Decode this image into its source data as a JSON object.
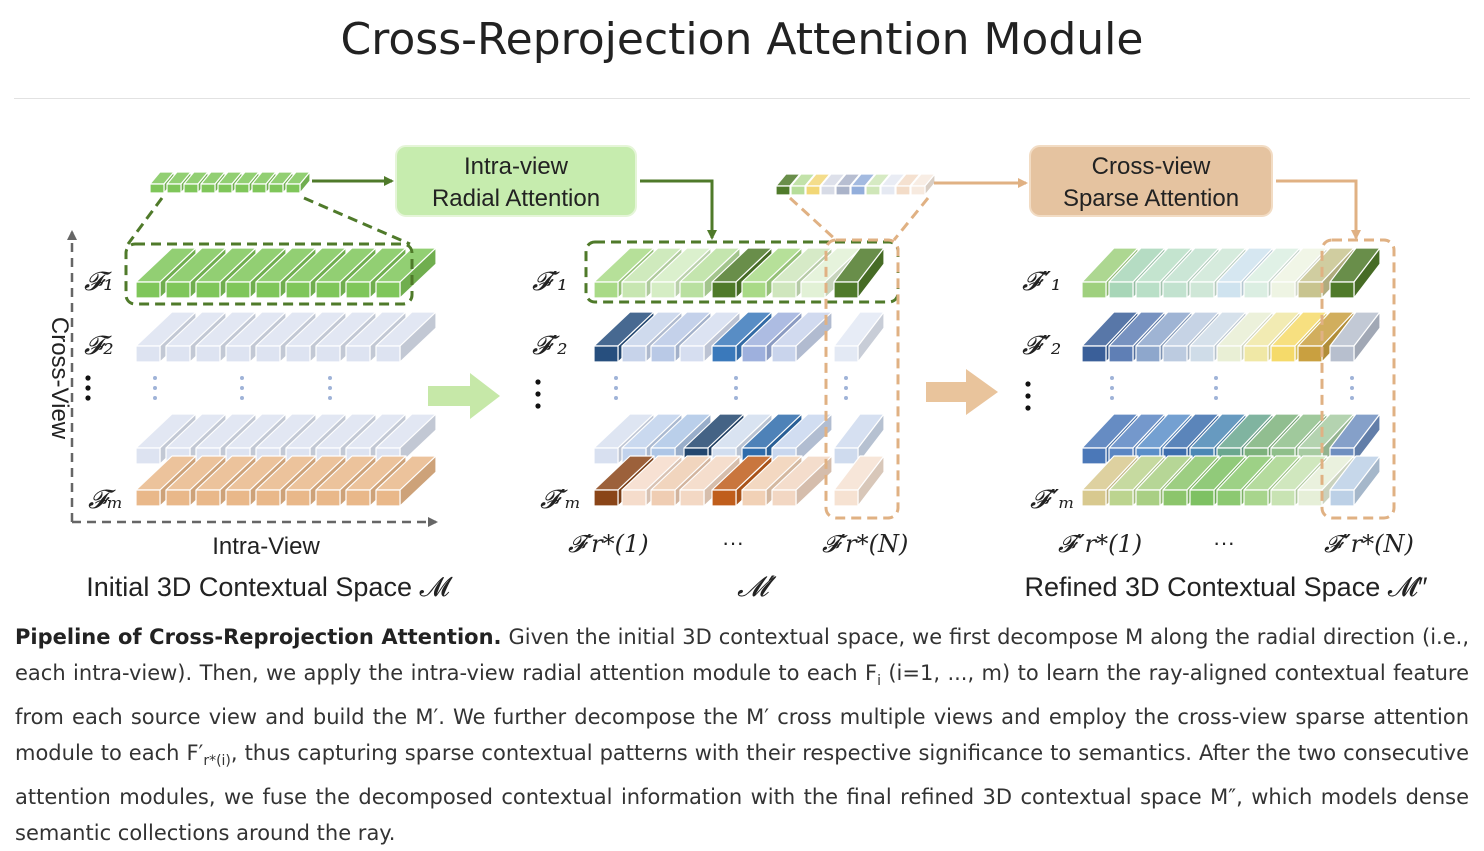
{
  "title": "Cross-Reprojection Attention Module",
  "diagram": {
    "stage1": {
      "rows": [
        "𝓕₁",
        "𝓕₂",
        "𝓕ₘ"
      ],
      "axis_y": "Cross-View",
      "axis_x": "Intra-View",
      "caption": "Initial 3D Contextual Space 𝓜"
    },
    "module1": {
      "line1": "Intra-view",
      "line2": "Radial Attention"
    },
    "stage2": {
      "rows": [
        "𝓕′₁",
        "𝓕′₂",
        "𝓕′ₘ"
      ],
      "bottom_left": "𝓕′r*(1)",
      "bottom_dots": "···",
      "bottom_right": "𝓕′r*(N)",
      "caption": "𝓜′"
    },
    "module2": {
      "line1": "Cross-view",
      "line2": "Sparse Attention"
    },
    "stage3": {
      "rows": [
        "𝓕″₁",
        "𝓕″₂",
        "𝓕″ₘ"
      ],
      "bottom_left": "𝓕″r*(1)",
      "bottom_dots": "···",
      "bottom_right": "𝓕″r*(N)",
      "caption": "Refined 3D Contextual Space 𝓜″"
    },
    "colors": {
      "green": "#7fc65a",
      "green_dark": "#4f7a2a",
      "lavender": "#dde3f1",
      "orange": "#e9b88a",
      "box_green": "#c6ecae",
      "box_orange": "#e5c3a0",
      "arrow_green": "#c6e8a8",
      "arrow_orange": "#e9c49c"
    }
  },
  "caption": {
    "lead": "Pipeline of Cross-Reprojection Attention.",
    "part1": " Given the initial 3D contextual space, we first decompose M along the radial direction (i.e., each intra-view). Then, we apply the intra-view radial attention module to each F",
    "sub_i": "i",
    "part2": " (i=1, ..., m) to learn the ray-aligned contextual feature from each source view and build the M′. We further decompose the M′ cross multiple views and employ the cross-view sparse attention module to each F′",
    "sub_r": "r*(i)",
    "part3": ", thus capturing sparse contextual patterns with their respective significance to semantics. After the two consecutive attention modules, we fuse the decomposed contextual information with the final refined 3D contextual space M″, which models dense semantic collections around the ray."
  }
}
